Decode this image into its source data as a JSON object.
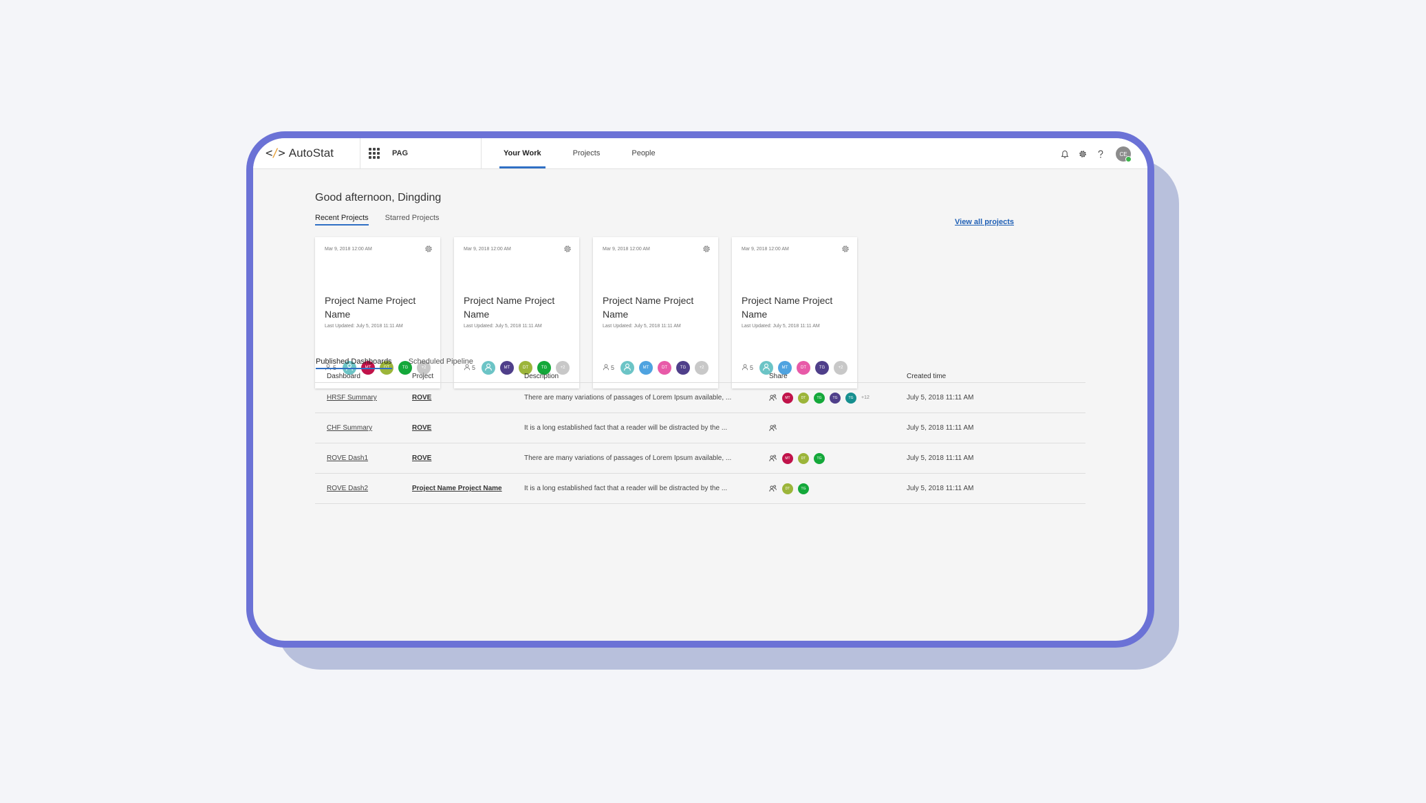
{
  "app": {
    "logo_mark_left": "<",
    "logo_mark_slash": "/",
    "logo_mark_right": ">",
    "name": "AutoStat",
    "org": "PAG",
    "user_initials": "CE"
  },
  "nav": [
    {
      "label": "Your Work",
      "active": true
    },
    {
      "label": "Projects",
      "active": false
    },
    {
      "label": "People",
      "active": false
    }
  ],
  "greeting": "Good afternoon, Dingding",
  "project_tabs": [
    {
      "label": "Recent Projects",
      "active": true
    },
    {
      "label": "Starred Projects",
      "active": false
    }
  ],
  "view_all": "View all projects",
  "cards": [
    {
      "date": "Mar 9, 2018 12:00 AM",
      "title": "Project Name Project Name",
      "updated": "Last Updated: July 5, 2018 11:11 AM",
      "members": "5",
      "avatars": [
        {
          "t": "",
          "c": "#6cc4c6",
          "person": true
        },
        {
          "t": "MT",
          "c": "#c0134a"
        },
        {
          "t": "DT",
          "c": "#9cb53a"
        },
        {
          "t": "TG",
          "c": "#14a83a"
        },
        {
          "t": "+2",
          "c": "#c8c8c8"
        }
      ]
    },
    {
      "date": "Mar 9, 2018 12:00 AM",
      "title": "Project Name Project Name",
      "updated": "Last Updated: July 5, 2018 11:11 AM",
      "members": "5",
      "avatars": [
        {
          "t": "",
          "c": "#6cc4c6",
          "person": true
        },
        {
          "t": "MT",
          "c": "#4f3f8a"
        },
        {
          "t": "DT",
          "c": "#9cb53a"
        },
        {
          "t": "TG",
          "c": "#14a83a"
        },
        {
          "t": "+2",
          "c": "#c8c8c8"
        }
      ]
    },
    {
      "date": "Mar 9, 2018 12:00 AM",
      "title": "Project Name Project Name",
      "updated": "Last Updated: July 5, 2018 11:11 AM",
      "members": "5",
      "avatars": [
        {
          "t": "",
          "c": "#6cc4c6",
          "person": true
        },
        {
          "t": "MT",
          "c": "#4fa3e0"
        },
        {
          "t": "DT",
          "c": "#e85aa8"
        },
        {
          "t": "TG",
          "c": "#4f3f8a"
        },
        {
          "t": "+2",
          "c": "#c8c8c8"
        }
      ]
    },
    {
      "date": "Mar 9, 2018 12:00 AM",
      "title": "Project Name Project Name",
      "updated": "Last Updated: July 5, 2018 11:11 AM",
      "members": "5",
      "avatars": [
        {
          "t": "",
          "c": "#6cc4c6",
          "person": true
        },
        {
          "t": "MT",
          "c": "#4fa3e0"
        },
        {
          "t": "DT",
          "c": "#e85aa8"
        },
        {
          "t": "TG",
          "c": "#4f3f8a"
        },
        {
          "t": "+2",
          "c": "#c8c8c8"
        }
      ]
    }
  ],
  "dash_tabs": [
    {
      "label": "Published Dashboards",
      "active": true
    },
    {
      "label": "Scheduled Pipeline",
      "active": false
    }
  ],
  "table": {
    "headers": [
      "Dashboard",
      "Project",
      "Description",
      "Share",
      "Created time"
    ],
    "rows": [
      {
        "dashboard": "HRSF Summary",
        "project": "ROVE",
        "description": "There are many variations of passages of Lorem Ipsum available, ...",
        "created": "July 5, 2018 11:11 AM",
        "share": [
          {
            "t": "MT",
            "c": "#c0134a"
          },
          {
            "t": "DT",
            "c": "#9cb53a"
          },
          {
            "t": "TG",
            "c": "#14a83a"
          },
          {
            "t": "TG",
            "c": "#4f3f8a"
          },
          {
            "t": "TG",
            "c": "#168f8f"
          }
        ],
        "more": "+12"
      },
      {
        "dashboard": "CHF Summary",
        "project": "ROVE",
        "description": "It is a long established fact that a reader will be distracted by the ...",
        "created": "July 5, 2018 11:11 AM",
        "share": [],
        "more": ""
      },
      {
        "dashboard": "ROVE Dash1",
        "project": "ROVE",
        "description": "There are many variations of passages of Lorem Ipsum available, ...",
        "created": "July 5, 2018 11:11 AM",
        "share": [
          {
            "t": "MT",
            "c": "#c0134a"
          },
          {
            "t": "DT",
            "c": "#9cb53a"
          },
          {
            "t": "TG",
            "c": "#14a83a"
          }
        ],
        "more": ""
      },
      {
        "dashboard": "ROVE Dash2",
        "project": "Project Name Project Name",
        "description": "It is a long established fact that a reader will be distracted by the ...",
        "created": "July 5, 2018 11:11 AM",
        "share": [
          {
            "t": "DT",
            "c": "#9cb53a"
          },
          {
            "t": "TG",
            "c": "#14a83a"
          }
        ],
        "more": ""
      }
    ]
  }
}
